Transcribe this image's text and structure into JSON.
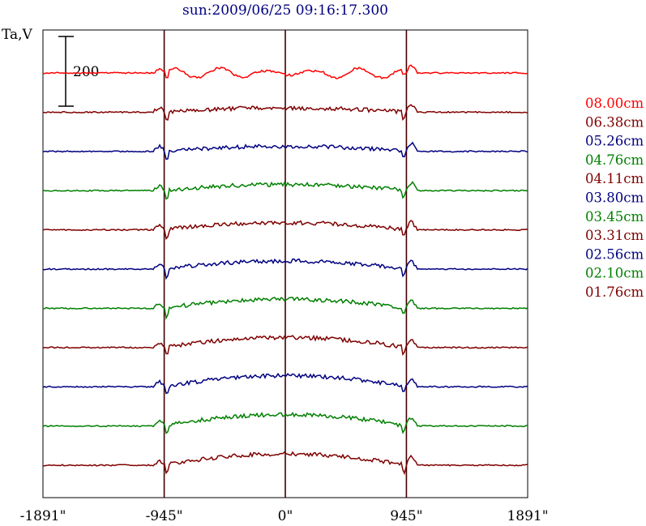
{
  "chart_data": {
    "type": "line",
    "title": "sun:2009/06/25 09:16:17.300",
    "ylabel": "Ta,V",
    "scale_bar_label": "200",
    "x_ticks": [
      "-1891\"",
      "-945\"",
      "0\"",
      "945\"",
      "1891\""
    ],
    "x_tick_values": [
      -1891,
      -945,
      0,
      945,
      1891
    ],
    "xlim": [
      -1891,
      1891
    ],
    "vertical_markers": [
      -945,
      0,
      945
    ],
    "colors": {
      "red": "#ff0000",
      "darkred": "#800000",
      "blue": "#000080",
      "green": "#008000",
      "axis": "#000000",
      "marker": "#400000"
    },
    "series": [
      {
        "name": "08.00cm",
        "color": "#ff0000"
      },
      {
        "name": "06.38cm",
        "color": "#800000"
      },
      {
        "name": "05.26cm",
        "color": "#000080"
      },
      {
        "name": "04.76cm",
        "color": "#008000"
      },
      {
        "name": "04.11cm",
        "color": "#800000"
      },
      {
        "name": "03.80cm",
        "color": "#000080"
      },
      {
        "name": "03.45cm",
        "color": "#008000"
      },
      {
        "name": "03.31cm",
        "color": "#800000"
      },
      {
        "name": "02.56cm",
        "color": "#000080"
      },
      {
        "name": "02.10cm",
        "color": "#008000"
      },
      {
        "name": "01.76cm",
        "color": "#800000"
      }
    ]
  }
}
